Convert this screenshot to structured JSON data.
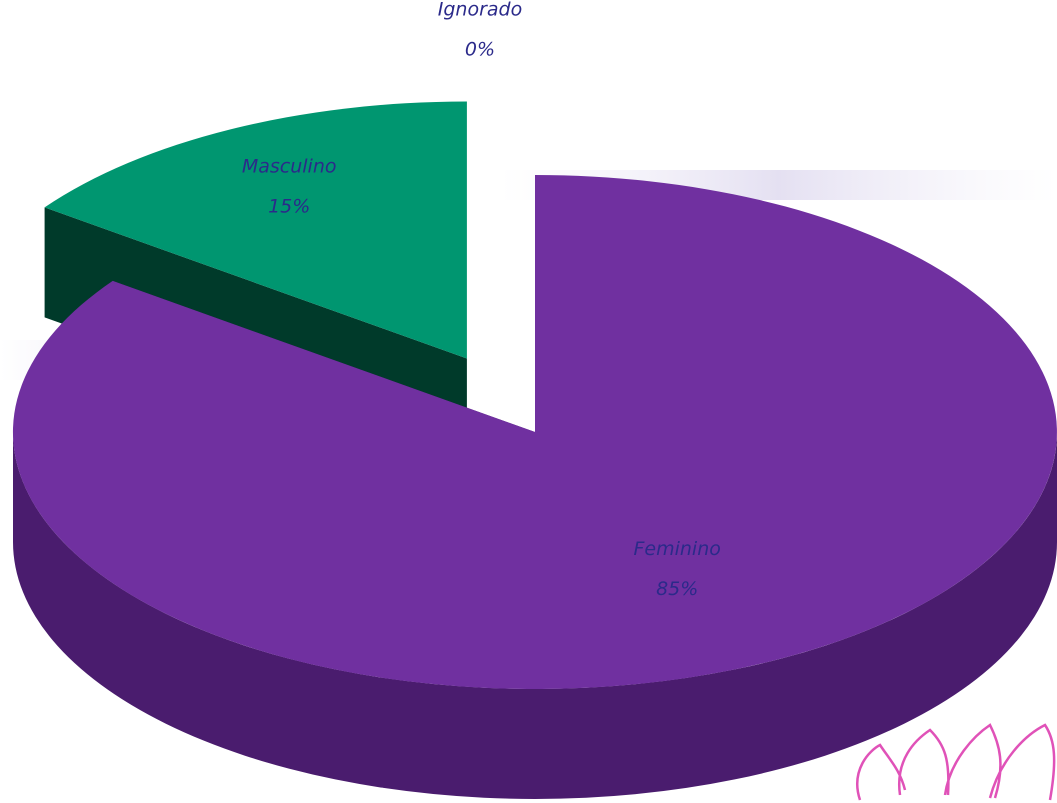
{
  "chart_data": {
    "type": "pie",
    "categories": [
      "Feminino",
      "Masculino",
      "Ignorado"
    ],
    "values": [
      85,
      15,
      0
    ],
    "value_labels": [
      "85%",
      "15%",
      "0%"
    ],
    "colors": [
      "#7030a0",
      "#009670",
      "#d9d9d9"
    ],
    "side_colors": [
      "#4a1c6e",
      "#003a2a",
      "#a0a0a0"
    ]
  }
}
